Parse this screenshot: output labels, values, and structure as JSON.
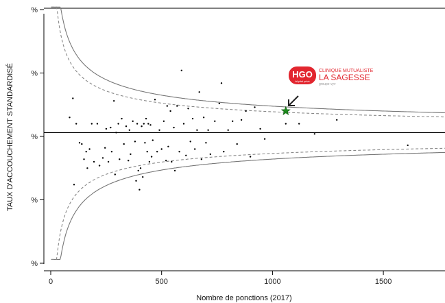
{
  "chart_data": {
    "type": "scatter",
    "subtype": "funnel-plot",
    "title": "",
    "xlabel": "Nombre de ponctions (2017)",
    "ylabel": "TAUX D'ACCOUCHEMENT STANDARDISÉ",
    "xlim": [
      -100,
      1780
    ],
    "ylim": [
      -1.0,
      1.0
    ],
    "x_ticks": [
      0,
      500,
      1000,
      1500
    ],
    "x_tick_labels": [
      "0",
      "500",
      "1000",
      "1500"
    ],
    "y_ticks": [
      -1.0,
      -0.5,
      0.0,
      0.5,
      1.0
    ],
    "y_tick_labels": [
      "%",
      "%",
      "%",
      "%",
      "%"
    ],
    "reference_line_y": 0.03,
    "grid": false,
    "series": [
      {
        "values": [
          [
            85,
            0.15
          ],
          [
            100,
            0.3
          ],
          [
            105,
            -0.38
          ],
          [
            115,
            0.1
          ],
          [
            130,
            -0.05
          ],
          [
            140,
            -0.06
          ],
          [
            150,
            -0.18
          ],
          [
            160,
            -0.12
          ],
          [
            165,
            -0.25
          ],
          [
            175,
            -0.1
          ],
          [
            185,
            0.1
          ],
          [
            195,
            -0.2
          ],
          [
            210,
            0.1
          ],
          [
            220,
            -0.23
          ],
          [
            235,
            -0.17
          ],
          [
            245,
            -0.09
          ],
          [
            250,
            0.06
          ],
          [
            260,
            -0.2
          ],
          [
            270,
            0.07
          ],
          [
            275,
            -0.12
          ],
          [
            285,
            0.28
          ],
          [
            290,
            -0.3
          ],
          [
            295,
            0.03
          ],
          [
            305,
            0.1
          ],
          [
            310,
            -0.18
          ],
          [
            320,
            0.14
          ],
          [
            330,
            -0.06
          ],
          [
            340,
            0.08
          ],
          [
            350,
            -0.19
          ],
          [
            355,
            0.05
          ],
          [
            360,
            -0.14
          ],
          [
            370,
            0.12
          ],
          [
            380,
            -0.04
          ],
          [
            385,
            -0.35
          ],
          [
            390,
            0.1
          ],
          [
            395,
            -0.27
          ],
          [
            400,
            -0.42
          ],
          [
            405,
            -0.25
          ],
          [
            410,
            0.08
          ],
          [
            415,
            -0.32
          ],
          [
            420,
            0.1
          ],
          [
            425,
            -0.05
          ],
          [
            430,
            0.14
          ],
          [
            435,
            -0.12
          ],
          [
            440,
            0.1
          ],
          [
            445,
            -0.2
          ],
          [
            450,
            0.09
          ],
          [
            455,
            -0.16
          ],
          [
            460,
            -0.03
          ],
          [
            470,
            0.29
          ],
          [
            480,
            -0.12
          ],
          [
            490,
            0.05
          ],
          [
            500,
            -0.1
          ],
          [
            510,
            0.12
          ],
          [
            520,
            -0.19
          ],
          [
            525,
            0.24
          ],
          [
            530,
            -0.08
          ],
          [
            540,
            0.2
          ],
          [
            545,
            -0.2
          ],
          [
            555,
            0.07
          ],
          [
            560,
            -0.27
          ],
          [
            570,
            0.24
          ],
          [
            580,
            -0.12
          ],
          [
            590,
            0.52
          ],
          [
            600,
            0.1
          ],
          [
            610,
            -0.15
          ],
          [
            620,
            0.22
          ],
          [
            630,
            -0.04
          ],
          [
            640,
            0.14
          ],
          [
            650,
            -0.1
          ],
          [
            660,
            0.05
          ],
          [
            670,
            0.35
          ],
          [
            680,
            -0.18
          ],
          [
            690,
            0.15
          ],
          [
            700,
            -0.05
          ],
          [
            710,
            0.05
          ],
          [
            720,
            -0.14
          ],
          [
            740,
            0.12
          ],
          [
            760,
            0.26
          ],
          [
            770,
            0.42
          ],
          [
            780,
            -0.12
          ],
          [
            800,
            0.05
          ],
          [
            820,
            0.12
          ],
          [
            840,
            -0.06
          ],
          [
            860,
            0.13
          ],
          [
            880,
            0.2
          ],
          [
            900,
            -0.16
          ],
          [
            920,
            0.23
          ],
          [
            945,
            0.06
          ],
          [
            965,
            -0.02
          ],
          [
            1060,
            0.1
          ],
          [
            1120,
            0.1
          ],
          [
            1190,
            0.02
          ],
          [
            1290,
            0.13
          ],
          [
            1610,
            -0.07
          ]
        ]
      }
    ],
    "highlight": {
      "x": 1060,
      "y": 0.2,
      "marker": "star",
      "color": "#1e8a1e"
    },
    "control_limits": {
      "outer": {
        "style": "solid",
        "color": "#777777"
      },
      "inner": {
        "style": "dashed",
        "color": "#888888"
      }
    },
    "annotation_logo": {
      "badge": "HGO",
      "badge_sub": "hôpital privé",
      "line1": "CLINIQUE MUTUALISTE",
      "line2": "LA SAGESSE",
      "line3": "groupe vyv",
      "color": "#e2262f"
    }
  }
}
